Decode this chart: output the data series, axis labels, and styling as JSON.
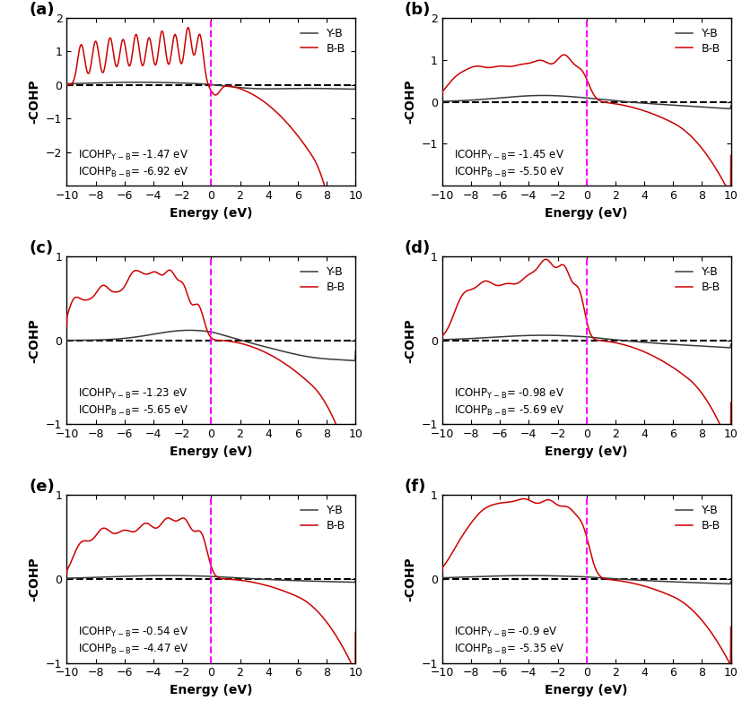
{
  "panels": [
    {
      "label": "a",
      "ylim": [
        -3,
        2
      ],
      "yticks": [
        -2,
        -1,
        0,
        1,
        2
      ],
      "icohp_yb": "-1.47",
      "icohp_bb": "-6.92"
    },
    {
      "label": "b",
      "ylim": [
        -2,
        2
      ],
      "yticks": [
        -1,
        0,
        1,
        2
      ],
      "icohp_yb": "-1.45",
      "icohp_bb": "-5.50"
    },
    {
      "label": "c",
      "ylim": [
        -1,
        1
      ],
      "yticks": [
        -1,
        0,
        1
      ],
      "icohp_yb": "-1.23",
      "icohp_bb": "-5.65"
    },
    {
      "label": "d",
      "ylim": [
        -1,
        1
      ],
      "yticks": [
        -1,
        0,
        1
      ],
      "icohp_yb": "-0.98",
      "icohp_bb": "-5.69"
    },
    {
      "label": "e",
      "ylim": [
        -1,
        1
      ],
      "yticks": [
        -1,
        0,
        1
      ],
      "icohp_yb": "-0.54",
      "icohp_bb": "-4.47"
    },
    {
      "label": "f",
      "ylim": [
        -1,
        1
      ],
      "yticks": [
        -1,
        0,
        1
      ],
      "icohp_yb": "-0.9",
      "icohp_bb": "-5.35"
    }
  ],
  "xlim": [
    -10,
    10
  ],
  "xlabel": "Energy (eV)",
  "ylabel": "-COHP",
  "color_yb": "#3a3a3a",
  "color_bb": "#cc0000",
  "fermi_color": "magenta",
  "zero_line_color": "black"
}
